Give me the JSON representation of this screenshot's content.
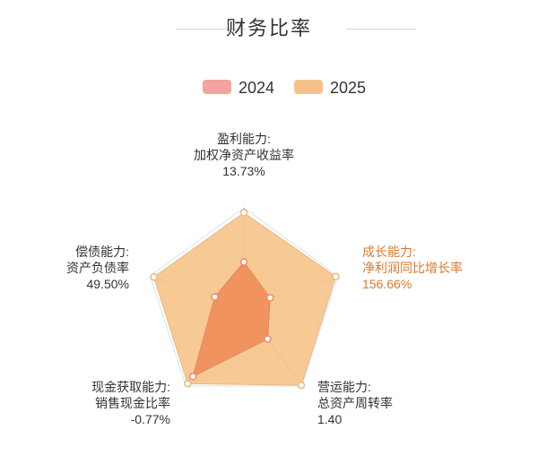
{
  "title": "财务比率",
  "legend": [
    {
      "label": "2024",
      "color": "#f4a3a0"
    },
    {
      "label": "2025",
      "color": "#f5c389"
    }
  ],
  "chart_data": {
    "type": "radar",
    "title": "财务比率",
    "indicators": [
      {
        "lines": [
          "盈利能力:",
          "加权净资产收益率",
          "13.73%"
        ],
        "highlight": false
      },
      {
        "lines": [
          "成长能力:",
          "净利润同比增长率",
          "156.66%"
        ],
        "highlight": true
      },
      {
        "lines": [
          "营运能力:",
          "总资产周转率",
          "1.40"
        ],
        "highlight": false
      },
      {
        "lines": [
          "现金获取能力:",
          "销售现金比率",
          "-0.77%"
        ],
        "highlight": false
      },
      {
        "lines": [
          "偿债能力:",
          "资产负债率",
          "49.50%"
        ],
        "highlight": false
      }
    ],
    "series": [
      {
        "name": "2024",
        "values": [
          0.45,
          0.28,
          0.41,
          0.88,
          0.31
        ],
        "color": "#f08a55"
      },
      {
        "name": "2025",
        "values": [
          0.95,
          0.98,
          0.99,
          0.97,
          0.96
        ],
        "color": "#f5c389"
      }
    ],
    "max": 1
  }
}
